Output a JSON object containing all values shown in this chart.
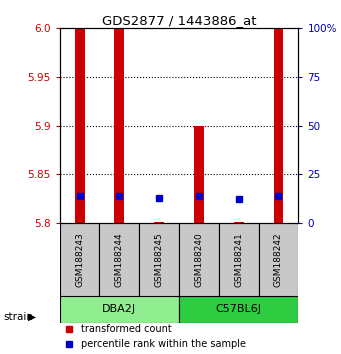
{
  "title": "GDS2877 / 1443886_at",
  "samples": [
    "GSM188243",
    "GSM188244",
    "GSM188245",
    "GSM188240",
    "GSM188241",
    "GSM188242"
  ],
  "groups": [
    {
      "label": "DBA2J",
      "indices": [
        0,
        1,
        2
      ],
      "color": "#90EE90"
    },
    {
      "label": "C57BL6J",
      "indices": [
        3,
        4,
        5
      ],
      "color": "#2ECC40"
    }
  ],
  "red_bar_tops": [
    6.0,
    6.0,
    5.801,
    5.9,
    5.801,
    6.0
  ],
  "red_bar_bottom": 5.8,
  "blue_y": [
    5.828,
    5.828,
    5.826,
    5.828,
    5.825,
    5.828
  ],
  "ylim": [
    5.8,
    6.0
  ],
  "yticks": [
    5.8,
    5.85,
    5.9,
    5.95,
    6.0
  ],
  "right_yticks": [
    0,
    25,
    50,
    75,
    100
  ],
  "right_ylim": [
    0,
    100
  ],
  "red_color": "#CC0000",
  "blue_color": "#0000CC",
  "left_tick_color": "#CC0000",
  "right_tick_color": "#0000BB",
  "bar_width": 0.25,
  "blue_marker_size": 5,
  "grid_color": "black",
  "legend_red_label": "transformed count",
  "legend_blue_label": "percentile rank within the sample",
  "strain_label": "strain"
}
